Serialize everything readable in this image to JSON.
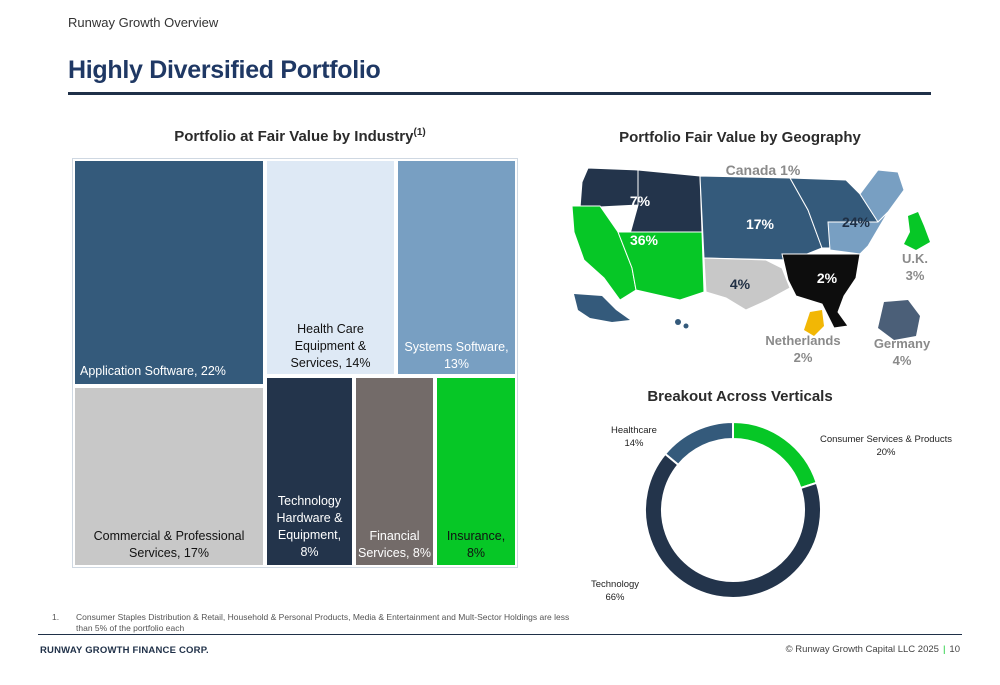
{
  "header": {
    "section": "Runway Growth Overview",
    "title": "Highly Diversified Portfolio"
  },
  "charts": {
    "industry_title": "Portfolio at Fair Value by Industry",
    "industry_superscript": "(1)",
    "geo_title": "Portfolio Fair Value by Geography",
    "verticals_title": "Breakout Across Verticals"
  },
  "chart_data": [
    {
      "type": "treemap",
      "title": "Portfolio at Fair Value by Industry",
      "items": [
        {
          "label": "Application Software, 22%",
          "name": "Application Software",
          "value": 22,
          "color": "#345a7b"
        },
        {
          "label": "Health Care Equipment & Services, 14%",
          "name": "Health Care Equipment & Services",
          "value": 14,
          "color": "#dee9f5"
        },
        {
          "label": "Systems Software, 13%",
          "name": "Systems Software",
          "value": 13,
          "color": "#789fc2"
        },
        {
          "label": "Commercial & Professional Services, 17%",
          "name": "Commercial & Professional Services",
          "value": 17,
          "color": "#c8c8c8"
        },
        {
          "label": "Technology Hardware & Equipment, 8%",
          "name": "Technology Hardware & Equipment",
          "value": 8,
          "color": "#23344b"
        },
        {
          "label": "Financial Services, 8%",
          "name": "Financial Services",
          "value": 8,
          "color": "#736b69"
        },
        {
          "label": "Insurance, 8%",
          "name": "Insurance",
          "value": 8,
          "color": "#06c726"
        }
      ]
    },
    {
      "type": "map",
      "title": "Portfolio Fair Value by Geography",
      "regions": [
        {
          "label": "Canada 1%",
          "value": 1
        },
        {
          "label": "7%",
          "value": 7,
          "color": "#23344b"
        },
        {
          "label": "36%",
          "value": 36,
          "color": "#06c726"
        },
        {
          "label": "17%",
          "value": 17,
          "color": "#345a7b"
        },
        {
          "label": "24%",
          "value": 24,
          "color": "#789fc2"
        },
        {
          "label": "4%",
          "value": 4,
          "color": "#c8c8c8"
        },
        {
          "label": "2%",
          "value": 2,
          "color": "#0d0d0d"
        },
        {
          "label": "U.K. 3%",
          "value": 3,
          "color": "#06c726"
        },
        {
          "label": "Netherlands 2%",
          "value": 2,
          "color": "#f2b705"
        },
        {
          "label": "Germany 4%",
          "value": 4,
          "color": "#4b5f78"
        }
      ]
    },
    {
      "type": "pie",
      "title": "Breakout Across Verticals",
      "categories": [
        "Consumer Services & Products",
        "Technology",
        "Healthcare"
      ],
      "values": [
        20,
        66,
        14
      ],
      "colors": [
        "#06c726",
        "#23344b",
        "#345a7b"
      ]
    }
  ],
  "map_labels": {
    "canada": "Canada 1%",
    "nw": "7%",
    "west": "36%",
    "central": "17%",
    "east": "24%",
    "south": "4%",
    "southeast": "2%",
    "uk_name": "U.K.",
    "uk_pct": "3%",
    "nl_name": "Netherlands",
    "nl_pct": "2%",
    "de_name": "Germany",
    "de_pct": "4%"
  },
  "donut_labels": {
    "consumer_name": "Consumer Services & Products",
    "consumer_pct": "20%",
    "technology_name": "Technology",
    "technology_pct": "66%",
    "healthcare_name": "Healthcare",
    "healthcare_pct": "14%"
  },
  "footnote": {
    "number": "1.",
    "text": "Consumer Staples Distribution & Retail, Household & Personal Products, Media & Entertainment and Mult-Sector Holdings are less than 5% of the portfolio each"
  },
  "footer": {
    "company": "RUNWAY GROWTH FINANCE CORP.",
    "copyright": "© Runway Growth Capital LLC 2025",
    "separator": "|",
    "page": "10"
  }
}
